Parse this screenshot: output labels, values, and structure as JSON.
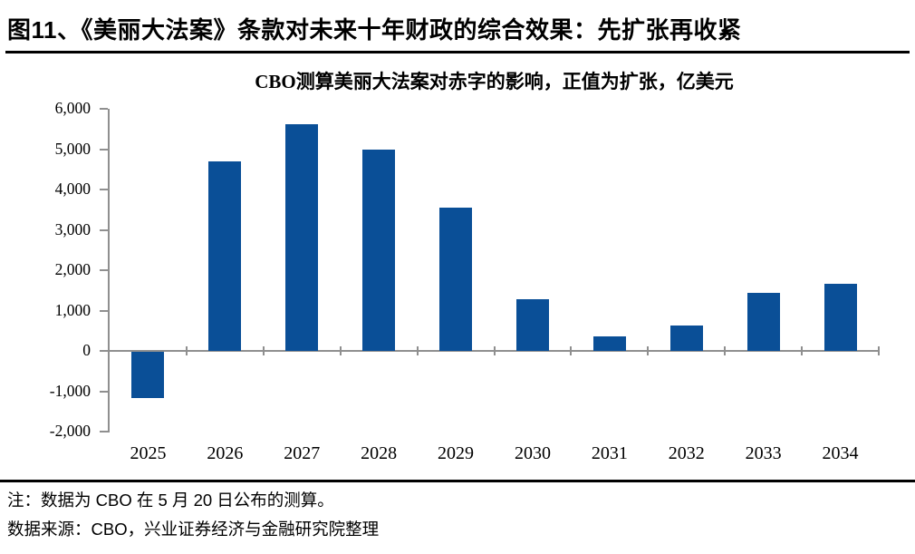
{
  "header": {
    "title": "图11、《美丽大法案》条款对未来十年财政的综合效果：先扩张再收紧"
  },
  "chart_data": {
    "type": "bar",
    "title": "CBO测算美丽大法案对赤字的影响，正值为扩张，亿美元",
    "categories": [
      "2025",
      "2026",
      "2027",
      "2028",
      "2029",
      "2030",
      "2031",
      "2032",
      "2033",
      "2034"
    ],
    "values": [
      -1150,
      4700,
      5620,
      5000,
      3560,
      1270,
      350,
      630,
      1430,
      1670
    ],
    "xlabel": "",
    "ylabel": "",
    "ylim": [
      -2000,
      6000
    ],
    "ytick_step": 1000,
    "ytick_labels": [
      "-2,000",
      "-1,000",
      "0",
      "1,000",
      "2,000",
      "3,000",
      "4,000",
      "5,000",
      "6,000"
    ],
    "bar_color": "#0a4f97",
    "axis_color": "#8f8f8f",
    "grid": false,
    "legend": "none"
  },
  "footer": {
    "note": "注：数据为 CBO 在 5 月 20 日公布的测算。",
    "source": "数据来源：CBO，兴业证券经济与金融研究院整理"
  }
}
